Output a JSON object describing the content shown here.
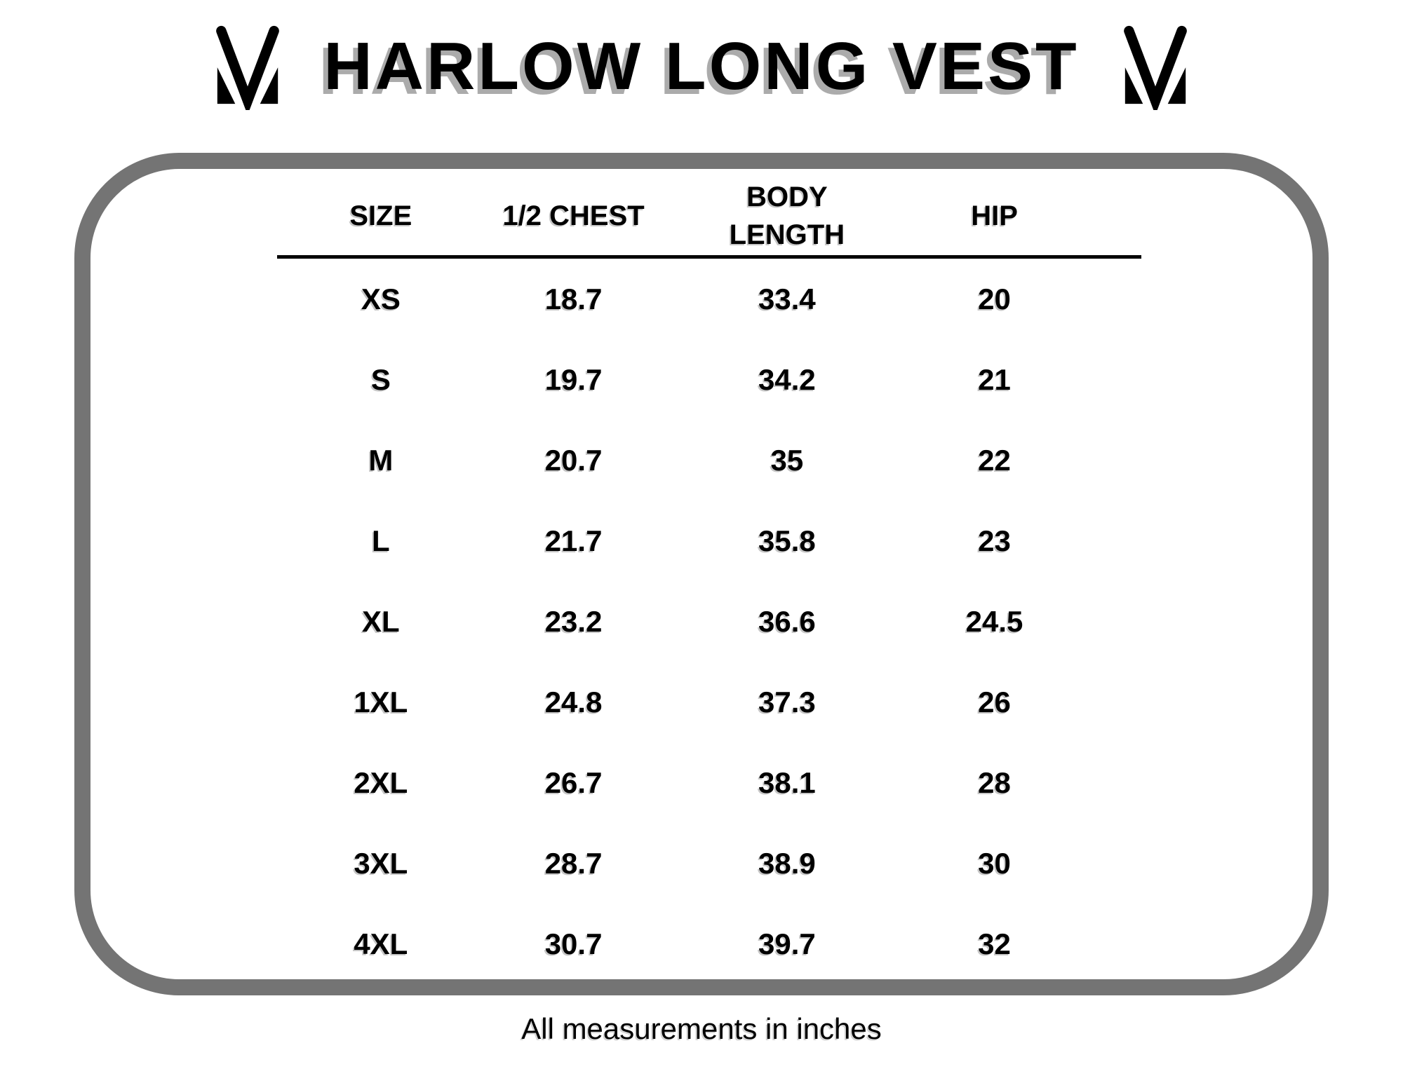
{
  "title": "HARLOW LONG VEST",
  "logo": {
    "name": "m-monogram-logo"
  },
  "footnote": "All measurements in inches",
  "colors": {
    "frame_border": "#747474",
    "title_shadow": "#ababab",
    "text": "#000000"
  },
  "chart_data": {
    "type": "table",
    "title": "HARLOW LONG VEST",
    "columns": [
      "SIZE",
      "1/2 CHEST",
      "BODY LENGTH",
      "HIP"
    ],
    "rows": [
      [
        "XS",
        18.7,
        33.4,
        20
      ],
      [
        "S",
        19.7,
        34.2,
        21
      ],
      [
        "M",
        20.7,
        35,
        22
      ],
      [
        "L",
        21.7,
        35.8,
        23
      ],
      [
        "XL",
        23.2,
        36.6,
        24.5
      ],
      [
        "1XL",
        24.8,
        37.3,
        26
      ],
      [
        "2XL",
        26.7,
        38.1,
        28
      ],
      [
        "3XL",
        28.7,
        38.9,
        30
      ],
      [
        "4XL",
        30.7,
        39.7,
        32
      ]
    ],
    "units": "inches",
    "layout_hints": {
      "grid": "off",
      "header_rule": "solid black",
      "frame": "rounded gray border"
    }
  }
}
